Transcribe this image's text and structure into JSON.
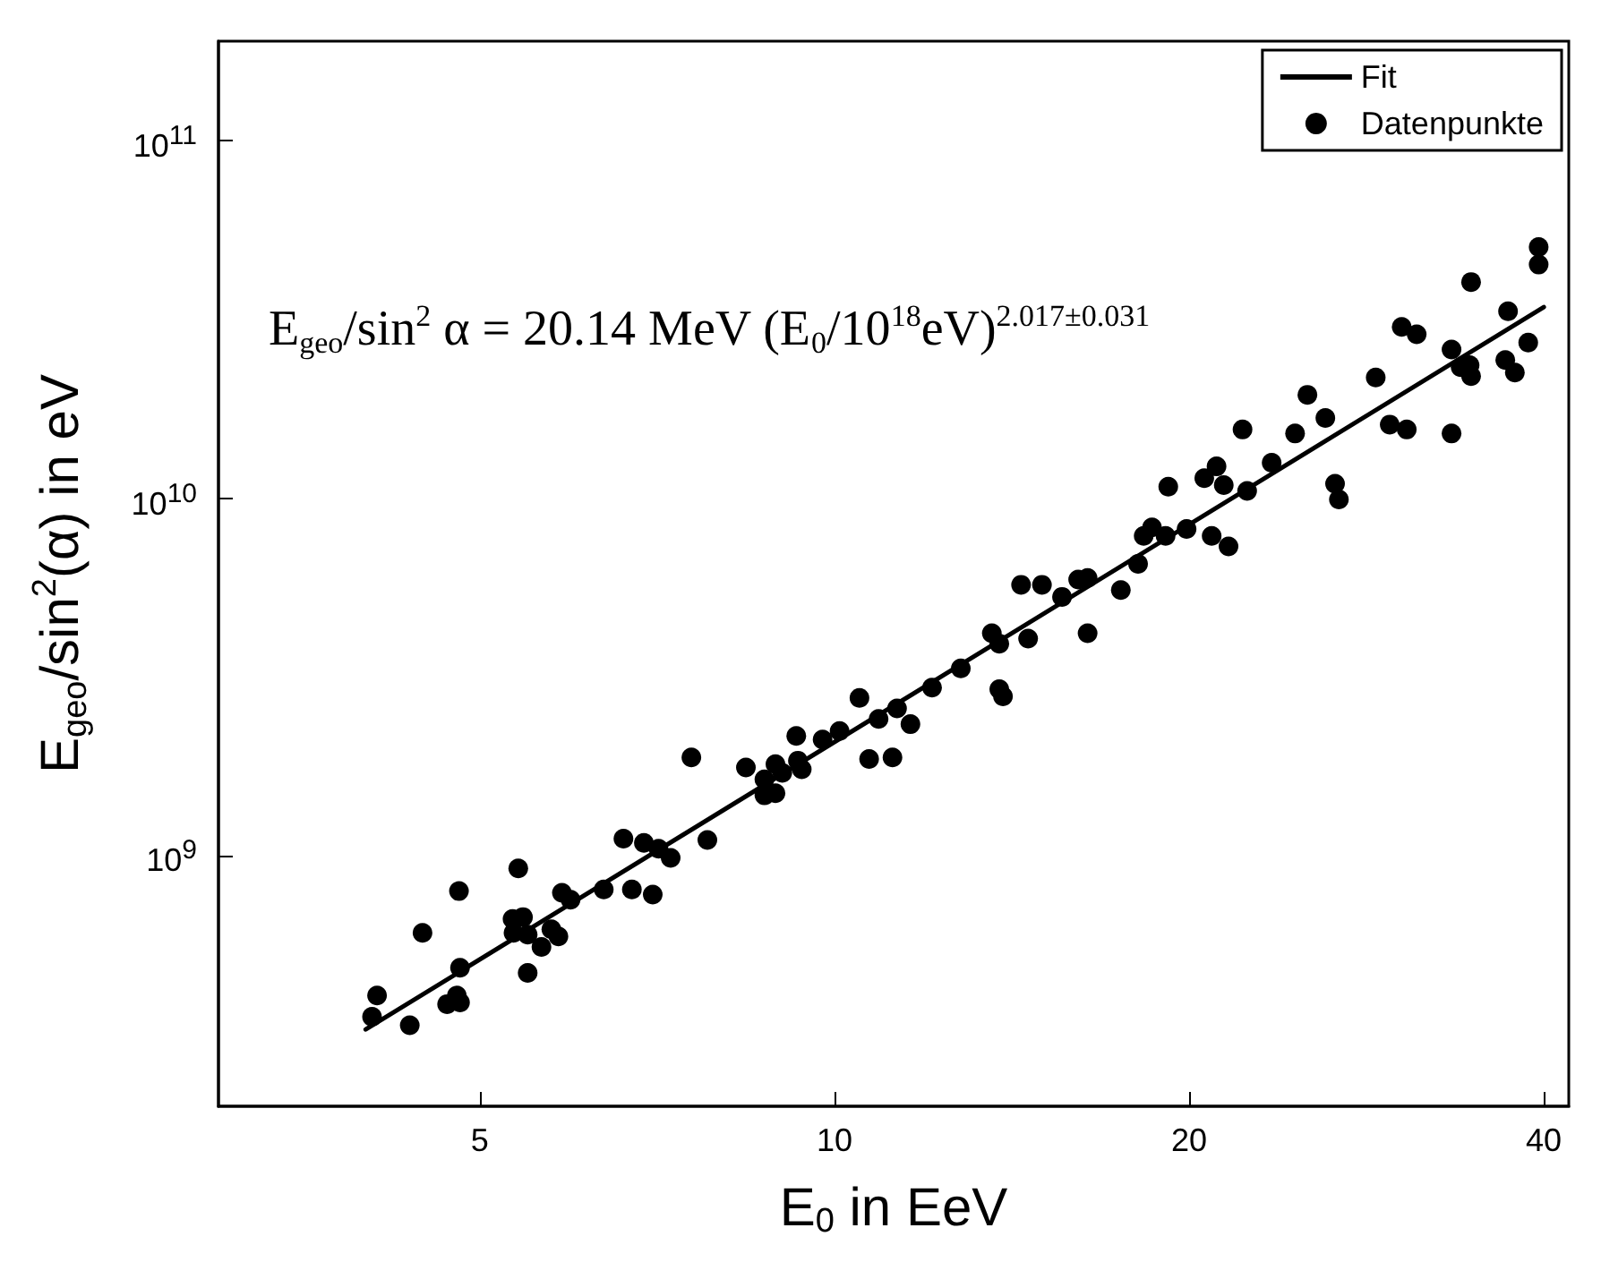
{
  "chart_data": {
    "type": "scatter",
    "xlabel": "E$_{0}$ in EeV",
    "ylabel": "E$_{geo}$/sin$^{2}$(α) in eV",
    "annotations": [
      "E$_{geo}$/sin$^{2}$ α = 20.14 MeV (E$_{0}$/10$^{18}$eV)$^{2.017±0.031}$"
    ],
    "log": "xy",
    "grid": false,
    "legend": "top right",
    "xlim": [
      3,
      42
    ],
    "xticks": [
      5,
      10,
      20,
      40
    ],
    "ylim": [
      200000000.0,
      190000000000.0
    ],
    "yticks": [
      {
        "value": 1000000000.0,
        "label": "10$^{9}$"
      },
      {
        "value": 10000000000.0,
        "label": "10$^{10}$"
      },
      {
        "value": 100000000000.0,
        "label": "10$^{11}$"
      }
    ],
    "series": [
      {
        "name": "Fit",
        "type": "line",
        "color": "#000000",
        "x": [
          4,
          40
        ],
        "values": [
          328000000.0,
          34300000000.0
        ]
      },
      {
        "name": "Datenpunkte",
        "marker": "circle",
        "color": "#000000",
        "x": [
          4.05,
          4.09,
          4.36,
          4.47,
          4.69,
          4.78,
          4.81,
          4.8,
          4.81,
          5.39,
          5.33,
          5.44,
          5.34,
          5.49,
          5.49,
          5.64,
          5.75,
          5.83,
          5.87,
          5.97,
          6.37,
          6.62,
          6.73,
          6.89,
          7.01,
          7.09,
          7.26,
          7.56,
          7.8,
          8.41,
          8.72,
          8.72,
          8.91,
          8.91,
          9.03,
          9.28,
          9.31,
          9.38,
          9.77,
          10.1,
          10.5,
          10.7,
          10.9,
          11.2,
          11.3,
          11.6,
          12.1,
          12.8,
          13.6,
          13.8,
          13.8,
          13.9,
          14.4,
          14.6,
          15.0,
          15.6,
          16.1,
          16.4,
          16.4,
          17.5,
          18.1,
          18.3,
          18.6,
          19.1,
          19.2,
          19.9,
          20.6,
          20.9,
          21.1,
          21.4,
          21.6,
          22.2,
          22.4,
          23.5,
          24.6,
          25.2,
          26.1,
          26.6,
          26.8,
          28.8,
          29.6,
          30.3,
          30.6,
          31.2,
          33.4,
          33.4,
          34.0,
          34.6,
          34.7,
          34.7,
          37.1,
          37.3,
          37.8,
          38.8,
          39.6,
          39.6
        ],
        "values": [
          356000000.0,
          408000000.0,
          337000000.0,
          611000000.0,
          386000000.0,
          408000000.0,
          390000000.0,
          799000000.0,
          488000000.0,
          925000000.0,
          668000000.0,
          676000000.0,
          611000000.0,
          604000000.0,
          472000000.0,
          558000000.0,
          625000000.0,
          597000000.0,
          790000000.0,
          756000000.0,
          808000000.0,
          1120000000.0,
          808000000.0,
          1090000000.0,
          781000000.0,
          1050000000.0,
          989000000.0,
          1890000000.0,
          1110000000.0,
          1770000000.0,
          1640000000.0,
          1480000000.0,
          1500000000.0,
          1810000000.0,
          1710000000.0,
          2170000000.0,
          1850000000.0,
          1750000000.0,
          2120000000.0,
          2240000000.0,
          2770000000.0,
          1870000000.0,
          2420000000.0,
          1890000000.0,
          2590000000.0,
          2340000000.0,
          2960000000.0,
          3350000000.0,
          4200000000.0,
          3930000000.0,
          2930000000.0,
          2800000000.0,
          5740000000.0,
          4060000000.0,
          5740000000.0,
          5310000000.0,
          5940000000.0,
          6000000000.0,
          4200000000.0,
          5550000000.0,
          6570000000.0,
          7860000000.0,
          8310000000.0,
          7860000000.0,
          10800000000.0,
          8220000000.0,
          11400000000.0,
          7860000000.0,
          12300000000.0,
          10900000000.0,
          7350000000.0,
          15600000000.0,
          10500000000.0,
          12600000000.0,
          15200000000.0,
          19500000000.0,
          16800000000.0,
          11000000000.0,
          9950000000.0,
          21800000000.0,
          16100000000.0,
          30200000000.0,
          15600000000.0,
          28800000000.0,
          26100000000.0,
          15200000000.0,
          23300000000.0,
          23600000000.0,
          22000000000.0,
          40300000000.0,
          24400000000.0,
          33400000000.0,
          22500000000.0,
          27300000000.0,
          50500000000.0,
          45100000000.0
        ]
      }
    ]
  }
}
